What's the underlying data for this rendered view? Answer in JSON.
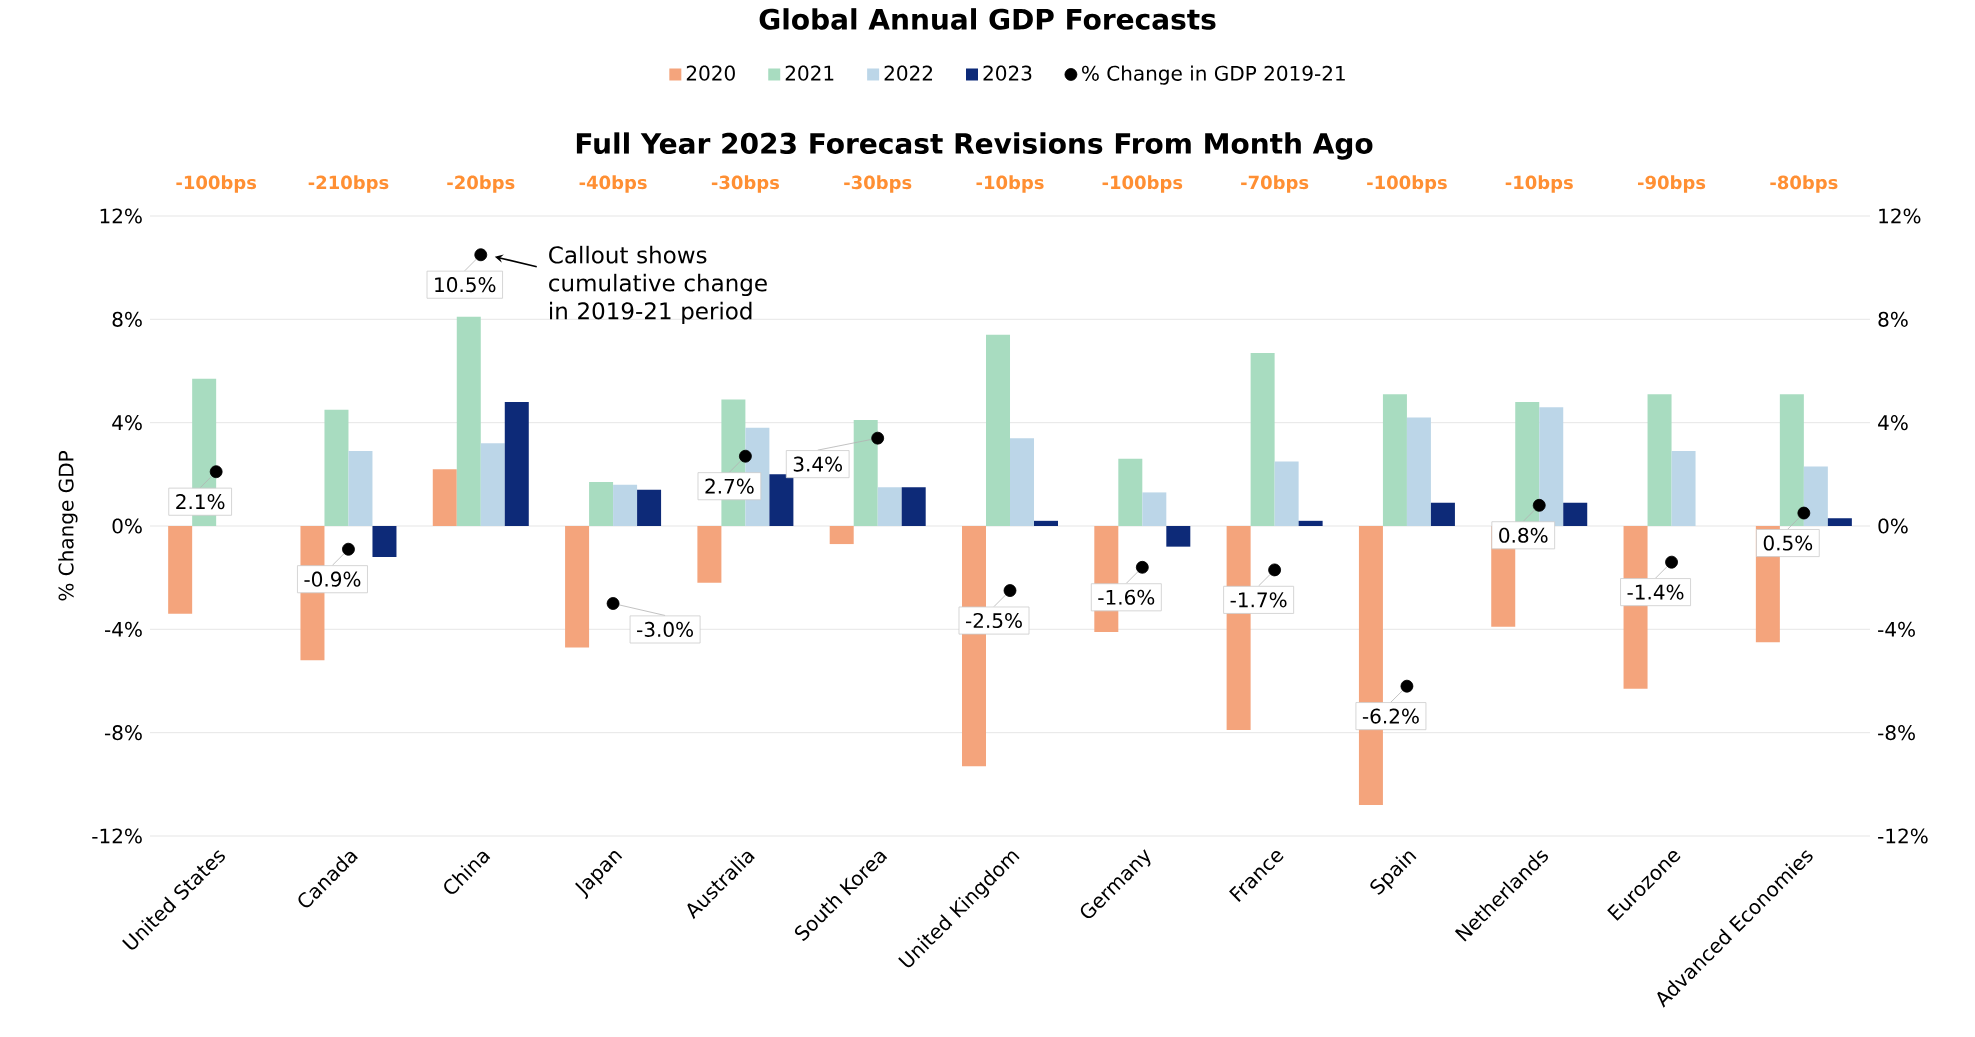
{
  "chart_data": {
    "type": "bar",
    "title": "Global Annual GDP Forecasts",
    "subtitle": "Full Year 2023 Forecast Revisions From Month Ago",
    "ylabel": "% Change GDP",
    "categories": [
      "United States",
      "Canada",
      "China",
      "Japan",
      "Australia",
      "South Korea",
      "United Kingdom",
      "Germany",
      "France",
      "Spain",
      "Netherlands",
      "Eurozone",
      "Advanced Economies"
    ],
    "series": [
      {
        "name": "2020",
        "color": "#f4a47c",
        "values": [
          -3.4,
          -5.2,
          2.2,
          -4.7,
          -2.2,
          -0.7,
          -9.3,
          -4.1,
          -7.9,
          -10.8,
          -3.9,
          -6.3,
          -4.5
        ]
      },
      {
        "name": "2021",
        "color": "#a8dcc0",
        "values": [
          5.7,
          4.5,
          8.1,
          1.7,
          4.9,
          4.1,
          7.4,
          2.6,
          6.7,
          5.1,
          4.8,
          5.1,
          5.1
        ]
      },
      {
        "name": "2022",
        "color": "#bcd6e8",
        "values": [
          null,
          2.9,
          3.2,
          1.6,
          3.8,
          1.5,
          3.4,
          1.3,
          2.5,
          4.2,
          4.6,
          2.9,
          2.3
        ]
      },
      {
        "name": "2023",
        "color": "#0d2a78",
        "values": [
          null,
          -1.2,
          4.8,
          1.4,
          2.0,
          1.5,
          0.2,
          -0.8,
          0.2,
          0.9,
          0.9,
          null,
          0.3
        ]
      },
      {
        "name": "% Change in GDP 2019-21",
        "type": "scatter",
        "color": "#000000",
        "marker": "circle",
        "values": [
          2.1,
          -0.9,
          10.5,
          -3.0,
          2.7,
          3.4,
          -2.5,
          -1.6,
          -1.7,
          -6.2,
          0.8,
          -1.4,
          0.5
        ],
        "value_labels": [
          "2.1%",
          "-0.9%",
          "10.5%",
          "-3.0%",
          "2.7%",
          "3.4%",
          "-2.5%",
          "-1.6%",
          "-1.7%",
          "-6.2%",
          "0.8%",
          "-1.4%",
          "0.5%"
        ]
      }
    ],
    "ylim": [
      -12,
      12
    ],
    "yticks": [
      {
        "value": -12,
        "label": "-12%"
      },
      {
        "value": -8,
        "label": "-8%"
      },
      {
        "value": -4,
        "label": "-4%"
      },
      {
        "value": 0,
        "label": "0%"
      },
      {
        "value": 4,
        "label": "4%"
      },
      {
        "value": 8,
        "label": "8%"
      },
      {
        "value": 12,
        "label": "12%"
      }
    ],
    "y2lim": [
      -12,
      12
    ],
    "y2ticks": [
      {
        "value": -12,
        "label": "-12%"
      },
      {
        "value": -8,
        "label": "-8%"
      },
      {
        "value": -4,
        "label": "-4%"
      },
      {
        "value": 0,
        "label": "0%"
      },
      {
        "value": 4,
        "label": "4%"
      },
      {
        "value": 8,
        "label": "8%"
      },
      {
        "value": 12,
        "label": "12%"
      }
    ],
    "grid": "y",
    "legend": "top",
    "annotations": [
      {
        "text": "Callout shows cumulative change in 2019-21 period",
        "x": "China",
        "y": 10.5
      },
      "-100bps",
      "-210bps",
      "-20bps",
      "-40bps",
      "-30bps",
      "-30bps",
      "-10bps",
      "-100bps",
      "-70bps",
      "-100bps",
      "-10bps",
      "-90bps",
      "-80bps"
    ]
  }
}
